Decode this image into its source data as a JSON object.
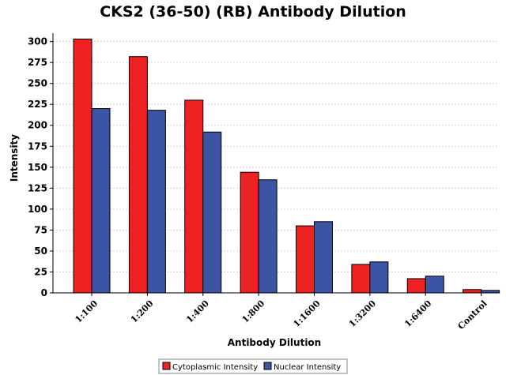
{
  "chart_data": {
    "type": "bar",
    "title": "CKS2 (36-50) (RB) Antibody Dilution",
    "xlabel": "Antibody Dilution",
    "ylabel": "Intensity",
    "categories": [
      "1:100",
      "1:200",
      "1:400",
      "1:800",
      "1:1600",
      "1:3200",
      "1:6400",
      "Control"
    ],
    "series": [
      {
        "name": "Cytoplasmic Intensity",
        "color": "#ee2222",
        "values": [
          303,
          282,
          230,
          144,
          80,
          34,
          17,
          4
        ]
      },
      {
        "name": "Nuclear Intensity",
        "color": "#3b55a4",
        "values": [
          220,
          218,
          192,
          135,
          85,
          37,
          20,
          3
        ]
      }
    ],
    "ylim": [
      0,
      310
    ],
    "yticks": [
      0,
      25,
      50,
      75,
      100,
      125,
      150,
      175,
      200,
      225,
      250,
      275,
      300
    ],
    "grid": true,
    "legend_position": "bottom"
  }
}
